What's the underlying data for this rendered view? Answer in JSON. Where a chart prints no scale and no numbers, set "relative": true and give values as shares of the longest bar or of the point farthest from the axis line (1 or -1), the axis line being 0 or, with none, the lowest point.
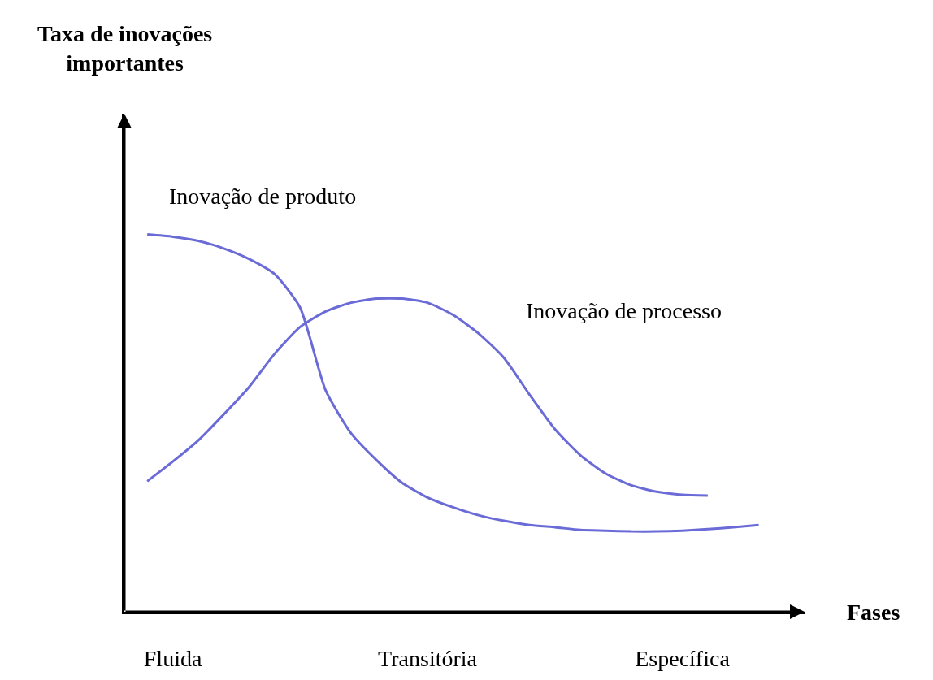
{
  "chart_data": {
    "type": "line",
    "relative": true,
    "annotations": [
      "Taxa de inovações importantes"
    ],
    "xlabel": "Fases",
    "categories": [
      null,
      "Fluida",
      null,
      null,
      null,
      null,
      null,
      null,
      null,
      null,
      null,
      "Transitória",
      null,
      null,
      null,
      null,
      null,
      null,
      null,
      null,
      null,
      "Específica",
      null,
      null,
      null
    ],
    "legend": false,
    "marker": "none",
    "line_style": "solid",
    "series": [
      {
        "name": "Inovação de produto",
        "color": "#6b6bd8",
        "values": [
          1.0,
          0.994,
          0.983,
          0.963,
          0.935,
          0.895,
          0.806,
          0.587,
          0.473,
          0.402,
          0.342,
          0.303,
          0.277,
          0.256,
          0.241,
          0.23,
          0.224,
          0.217,
          0.215,
          0.213,
          0.213,
          0.215,
          0.219,
          0.224,
          0.23
        ]
      },
      {
        "name": "Inovação de processo",
        "color": "#6b6bd8",
        "values": [
          0.346,
          0.398,
          0.454,
          0.523,
          0.596,
          0.684,
          0.755,
          0.796,
          0.819,
          0.83,
          0.83,
          0.819,
          0.787,
          0.738,
          0.673,
          0.576,
          0.484,
          0.415,
          0.366,
          0.335,
          0.318,
          0.31,
          0.308,
          null,
          null
        ]
      }
    ]
  }
}
